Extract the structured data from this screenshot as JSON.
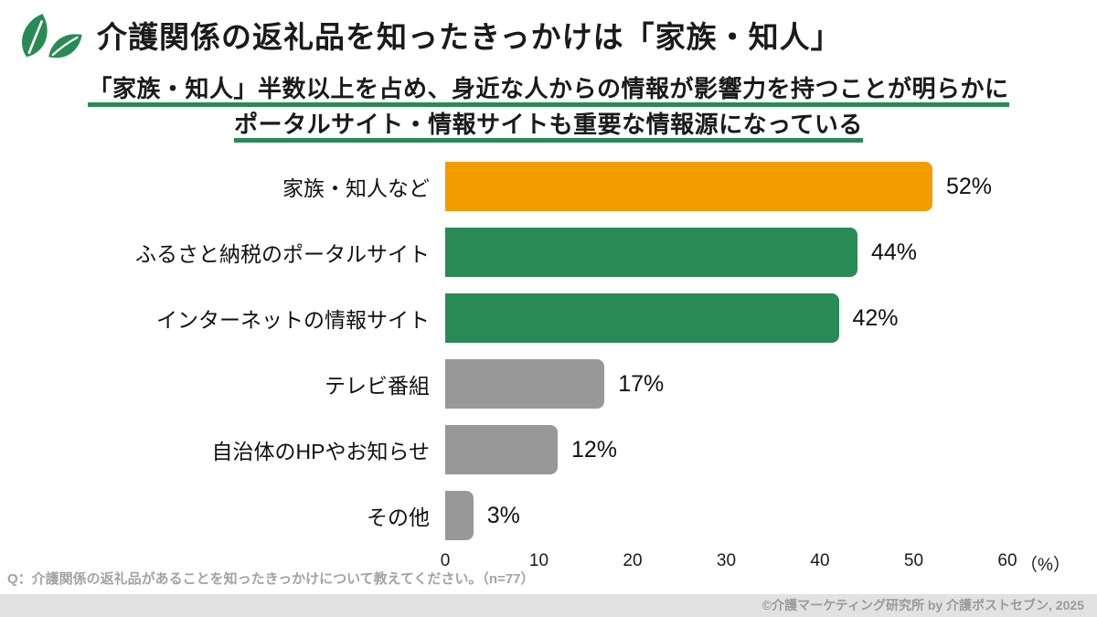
{
  "header": {
    "title": "介護関係の返礼品を知ったきっかけは「家族・知人」",
    "subtitle_line1": "「家族・知人」半数以上を占め、身近な人からの情報が影響力を持つことが明らかに",
    "subtitle_line2": "ポータルサイト・情報サイトも重要な情報源になっている"
  },
  "logo": {
    "icon": "leaf-logo",
    "color": "#2a8a55"
  },
  "chart_data": {
    "type": "bar",
    "orientation": "horizontal",
    "categories": [
      "家族・知人など",
      "ふるさと納税のポータルサイト",
      "インターネットの情報サイト",
      "テレビ番組",
      "自治体のHPやお知らせ",
      "その他"
    ],
    "values": [
      52,
      44,
      42,
      17,
      12,
      3
    ],
    "value_labels": [
      "52%",
      "44%",
      "42%",
      "17%",
      "12%",
      "3%"
    ],
    "bar_colors": [
      "#f29c00",
      "#2a8a55",
      "#2a8a55",
      "#989898",
      "#989898",
      "#989898"
    ],
    "xlim": [
      0,
      60
    ],
    "xticks": [
      0,
      10,
      20,
      30,
      40,
      50,
      60
    ],
    "axis_unit_label": "（%）",
    "grid": false,
    "legend": "none"
  },
  "footnote": {
    "question": "Q：介護関係の返礼品があることを知ったきっかけについて教えてください。（n=77）"
  },
  "footer": {
    "credit": "©介護マーケティング研究所 by 介護ポストセブン, 2025"
  },
  "colors": {
    "accent_green": "#2a8a55",
    "accent_orange": "#f29c00",
    "bar_gray": "#989898",
    "footer_bg": "#e2e2e2",
    "muted_text": "#a3a3a3"
  }
}
